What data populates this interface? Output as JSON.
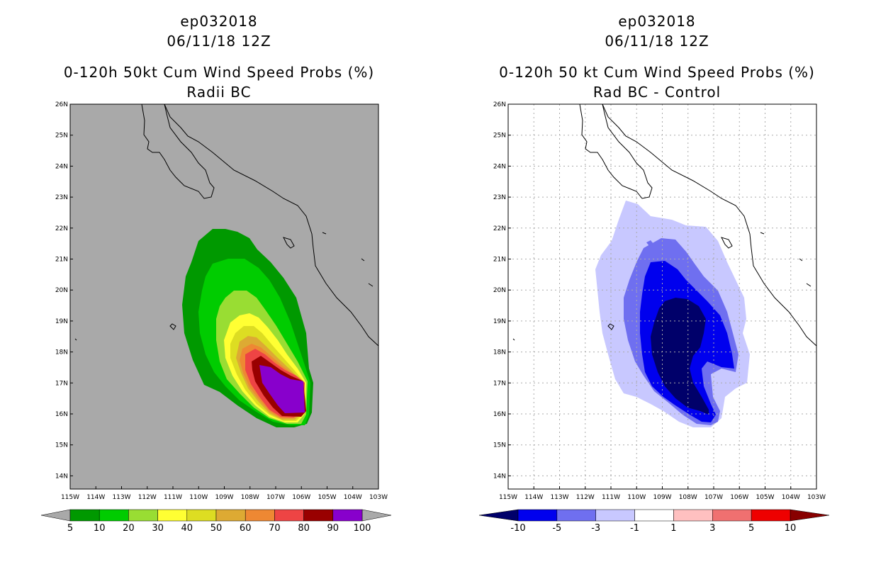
{
  "left": {
    "title_line1": "ep032018",
    "title_line2": "06/11/18 12Z",
    "title_line3": "0-120h 50kt Cum Wind Speed Probs (%)",
    "title_line4": "Radii BC",
    "background_color": "#a9a9a9",
    "colorbar": {
      "colors": [
        "#009900",
        "#00cc00",
        "#99dd33",
        "#ffff33",
        "#dddd22",
        "#ddaa33",
        "#ee8833",
        "#ee4444",
        "#990000",
        "#8800cc"
      ],
      "labels": [
        "5",
        "10",
        "20",
        "30",
        "40",
        "50",
        "60",
        "70",
        "80",
        "90",
        "100"
      ]
    }
  },
  "right": {
    "title_line1": "ep032018",
    "title_line2": "06/11/18 12Z",
    "title_line3": "0-120h 50 kt Cum Wind Speed Probs (%)",
    "title_line4": "Rad BC - Control",
    "background_color": "#ffffff",
    "colorbar": {
      "colors": [
        "#0000ee",
        "#6f6ff0",
        "#c8c8ff",
        "#ffffff",
        "#ffc0c0",
        "#f07070",
        "#ee0000"
      ],
      "left_arrow_color": "#00006a",
      "right_arrow_color": "#880000",
      "labels": [
        "-10",
        "-5",
        "-3",
        "-1",
        "1",
        "3",
        "5",
        "10"
      ]
    }
  },
  "map": {
    "lat_labels": [
      "26N",
      "25N",
      "24N",
      "23N",
      "22N",
      "21N",
      "20N",
      "19N",
      "18N",
      "17N",
      "16N",
      "15N",
      "14N"
    ],
    "lon_labels": [
      "115W",
      "114W",
      "113W",
      "112W",
      "111W",
      "110W",
      "109W",
      "108W",
      "107W",
      "106W",
      "105W",
      "104W",
      "103W"
    ]
  }
}
